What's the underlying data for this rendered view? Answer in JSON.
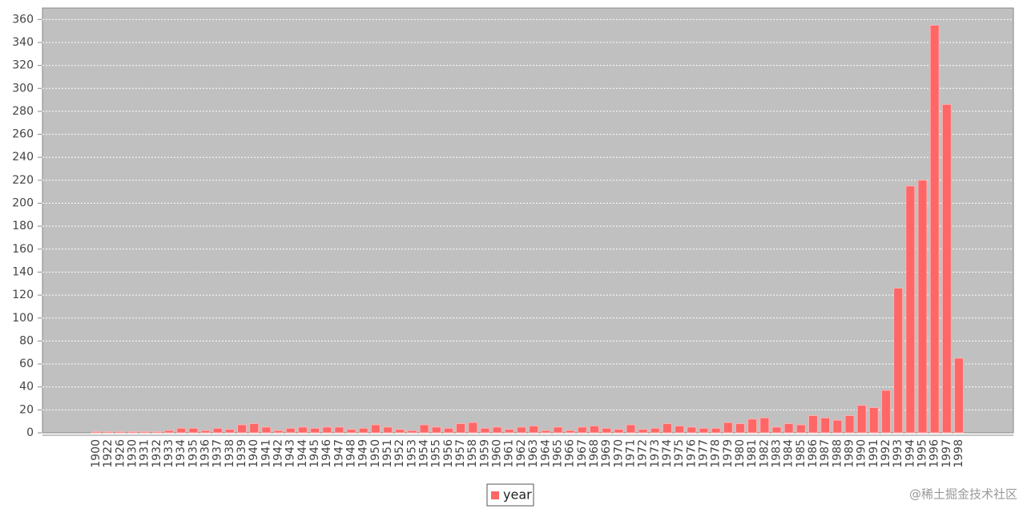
{
  "chart_data": {
    "type": "bar",
    "categories": [
      "1900",
      "1922",
      "1926",
      "1930",
      "1931",
      "1932",
      "1933",
      "1934",
      "1935",
      "1936",
      "1937",
      "1938",
      "1939",
      "1940",
      "1941",
      "1942",
      "1943",
      "1944",
      "1945",
      "1946",
      "1947",
      "1948",
      "1949",
      "1950",
      "1951",
      "1952",
      "1953",
      "1954",
      "1955",
      "1956",
      "1957",
      "1958",
      "1959",
      "1960",
      "1961",
      "1962",
      "1963",
      "1964",
      "1965",
      "1966",
      "1967",
      "1968",
      "1969",
      "1970",
      "1971",
      "1972",
      "1973",
      "1974",
      "1975",
      "1976",
      "1977",
      "1978",
      "1979",
      "1980",
      "1981",
      "1982",
      "1983",
      "1984",
      "1985",
      "1986",
      "1987",
      "1988",
      "1989",
      "1990",
      "1991",
      "1992",
      "1993",
      "1994",
      "1995",
      "1996",
      "1997",
      "1998"
    ],
    "series": [
      {
        "name": "year",
        "color": "#ff6666",
        "values": [
          1,
          1,
          1,
          1,
          1,
          1,
          2,
          4,
          4,
          2,
          4,
          3,
          7,
          8,
          5,
          2,
          4,
          5,
          4,
          5,
          5,
          3,
          4,
          7,
          5,
          3,
          2,
          7,
          5,
          4,
          8,
          9,
          4,
          5,
          3,
          5,
          6,
          2,
          5,
          2,
          5,
          6,
          4,
          3,
          7,
          3,
          4,
          8,
          6,
          5,
          4,
          4,
          9,
          8,
          12,
          13,
          5,
          8,
          7,
          15,
          13,
          11,
          15,
          24,
          22,
          37,
          126,
          215,
          220,
          355,
          286,
          65
        ]
      }
    ],
    "ylim": [
      0,
      370
    ],
    "yticks": [
      0,
      20,
      40,
      60,
      80,
      100,
      120,
      140,
      160,
      180,
      200,
      220,
      240,
      260,
      280,
      300,
      320,
      340,
      360
    ],
    "grid": true,
    "legend": "bottom",
    "watermark": "@稀土掘金技术社区"
  }
}
